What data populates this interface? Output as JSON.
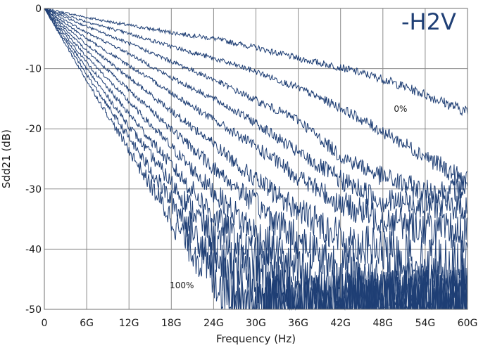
{
  "chart_data": {
    "type": "line",
    "title": "",
    "xlabel": "Frequency (Hz)",
    "ylabel": "Sdd21 (dB)",
    "xlim": [
      0,
      60
    ],
    "ylim": [
      -50,
      0
    ],
    "x_ticks": [
      {
        "value": 0,
        "label": "0"
      },
      {
        "value": 6,
        "label": "6G"
      },
      {
        "value": 12,
        "label": "12G"
      },
      {
        "value": 18,
        "label": "18G"
      },
      {
        "value": 24,
        "label": "24G"
      },
      {
        "value": 30,
        "label": "30G"
      },
      {
        "value": 36,
        "label": "36G"
      },
      {
        "value": 42,
        "label": "42G"
      },
      {
        "value": 48,
        "label": "48G"
      },
      {
        "value": 54,
        "label": "54G"
      },
      {
        "value": 60,
        "label": "60G"
      }
    ],
    "y_ticks": [
      {
        "value": 0,
        "label": "0"
      },
      {
        "value": -10,
        "label": "-10"
      },
      {
        "value": -20,
        "label": "-20"
      },
      {
        "value": -30,
        "label": "-30"
      },
      {
        "value": -40,
        "label": "-40"
      },
      {
        "value": -50,
        "label": "-50"
      }
    ],
    "grid": true,
    "line_color": "#1f3f75",
    "annotations": [
      {
        "text": "-H2V",
        "style": "large",
        "x": 54.5,
        "y": -3.5
      },
      {
        "text": "0%",
        "style": "small",
        "x": 50.5,
        "y": -17.2
      },
      {
        "text": "100%",
        "style": "small",
        "x": 19.5,
        "y": -46.5
      }
    ],
    "series": [
      {
        "x": [
          0,
          6,
          12,
          18,
          24,
          30,
          36,
          42,
          48,
          54,
          60
        ],
        "values": [
          0,
          -1.5,
          -2.8,
          -4.0,
          -5.0,
          -6.5,
          -8.3,
          -9.8,
          -11.7,
          -14.3,
          -17.2
        ]
      },
      {
        "x": [
          0,
          6,
          12,
          18,
          24,
          30,
          36,
          42,
          48,
          54,
          60
        ],
        "values": [
          0,
          -2.2,
          -4.2,
          -6.3,
          -8.3,
          -10.5,
          -13.2,
          -16.5,
          -20.5,
          -24.5,
          -29.0
        ]
      },
      {
        "x": [
          0,
          6,
          12,
          18,
          24,
          30,
          36,
          42,
          48,
          54,
          60
        ],
        "values": [
          0,
          -3.0,
          -5.8,
          -8.8,
          -11.8,
          -15.3,
          -18.5,
          -24.5,
          -28.0,
          -30.5,
          -30.0
        ]
      },
      {
        "x": [
          0,
          6,
          12,
          18,
          24,
          30,
          36,
          42,
          48,
          54,
          60
        ],
        "values": [
          0,
          -4.0,
          -7.5,
          -11.5,
          -15.0,
          -19.0,
          -24.0,
          -28.5,
          -32.0,
          -32.5,
          -33.0
        ]
      },
      {
        "x": [
          0,
          6,
          12,
          18,
          24,
          30,
          36,
          42,
          48,
          54,
          60
        ],
        "values": [
          0,
          -5.0,
          -9.5,
          -14.0,
          -18.5,
          -23.0,
          -28.0,
          -32.5,
          -35.0,
          -36.5,
          -37.5
        ]
      },
      {
        "x": [
          0,
          6,
          12,
          18,
          24,
          30,
          36,
          42,
          48,
          54,
          60
        ],
        "values": [
          0,
          -6.0,
          -11.5,
          -17.0,
          -22.5,
          -28.5,
          -33.5,
          -38.0,
          -40.5,
          -42.0,
          -43.0
        ]
      },
      {
        "x": [
          0,
          6,
          12,
          18,
          24,
          30,
          36,
          42,
          48,
          54,
          60
        ],
        "values": [
          0,
          -7.0,
          -13.5,
          -20.0,
          -26.5,
          -32.5,
          -38.5,
          -43.0,
          -45.5,
          -47.0,
          -48.0
        ]
      },
      {
        "x": [
          0,
          6,
          12,
          18,
          24,
          30,
          36,
          42,
          48,
          54,
          60
        ],
        "values": [
          0,
          -8.0,
          -15.5,
          -23.0,
          -30.5,
          -37.5,
          -44.0,
          -48.5,
          -50,
          -50,
          -50
        ]
      },
      {
        "x": [
          0,
          6,
          12,
          18,
          24,
          30,
          36,
          42,
          48,
          54,
          60
        ],
        "values": [
          0,
          -9.0,
          -17.5,
          -26.0,
          -34.5,
          -42.0,
          -48.0,
          -50,
          -50,
          -50,
          -50
        ]
      },
      {
        "x": [
          0,
          6,
          12,
          18,
          24,
          30,
          36,
          40,
          48,
          54,
          60
        ],
        "values": [
          0,
          -10.0,
          -19.5,
          -29.0,
          -38.0,
          -45.5,
          -50,
          -50,
          -50,
          -50,
          -50
        ]
      },
      {
        "x": [
          0,
          6,
          12,
          18,
          24,
          27,
          30,
          36,
          48,
          54,
          60
        ],
        "values": [
          0,
          -11.0,
          -21.5,
          -32.0,
          -41.5,
          -46.5,
          -50,
          -50,
          -50,
          -50,
          -50
        ]
      },
      {
        "x": [
          0,
          6,
          12,
          18,
          22,
          24,
          30,
          36,
          48,
          54,
          60
        ],
        "values": [
          0,
          -12.0,
          -23.5,
          -35.0,
          -41.5,
          -44.5,
          -50,
          -50,
          -50,
          -50,
          -50
        ]
      }
    ]
  }
}
